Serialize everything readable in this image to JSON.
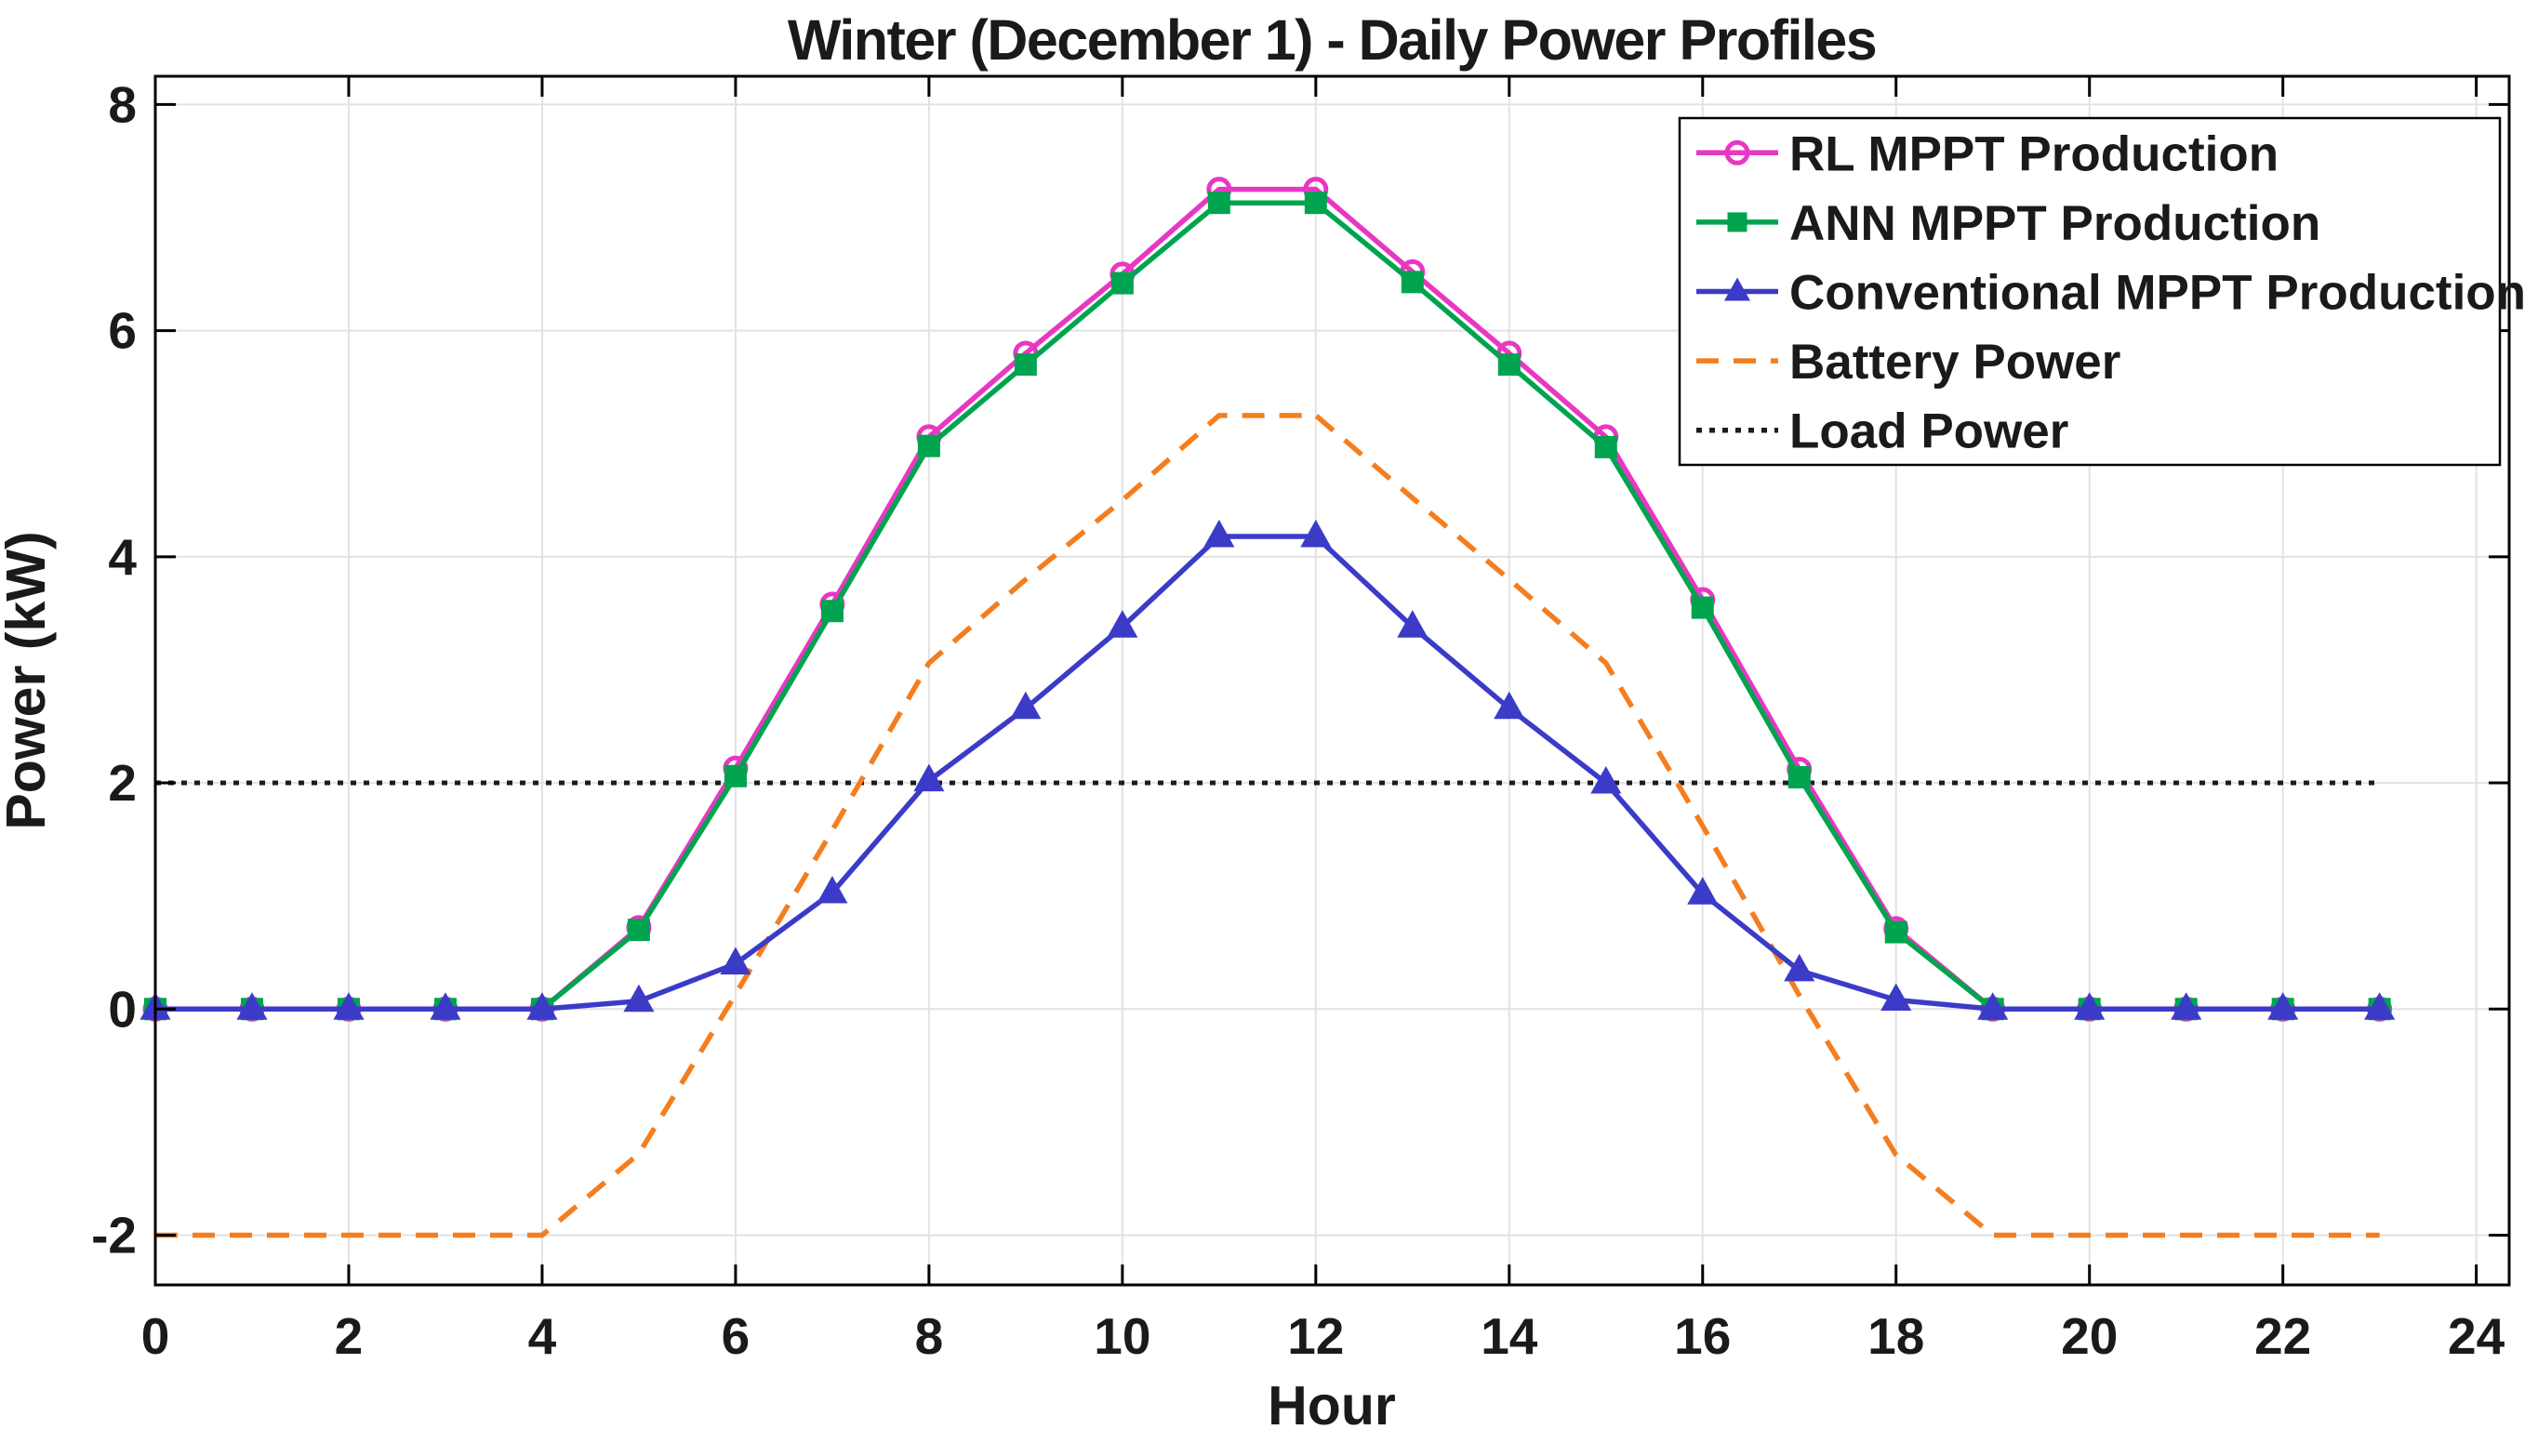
{
  "title": "Winter (December 1) - Daily Power Profiles",
  "x_axis": {
    "label": "Hour",
    "min": 0,
    "max": 24.34,
    "ticks": [
      0,
      2,
      4,
      6,
      8,
      10,
      12,
      14,
      16,
      18,
      20,
      22,
      24
    ]
  },
  "y_axis": {
    "label": "Power (kW)",
    "min": -2.44,
    "max": 8.25,
    "ticks": [
      -2,
      0,
      2,
      4,
      6,
      8
    ]
  },
  "chart_data": {
    "type": "line",
    "title": "Winter (December 1) - Daily Power Profiles",
    "xlabel": "Hour",
    "ylabel": "Power (kW)",
    "x": [
      0,
      1,
      2,
      3,
      4,
      5,
      6,
      7,
      8,
      9,
      10,
      11,
      12,
      13,
      14,
      15,
      16,
      17,
      18,
      19,
      20,
      21,
      22,
      23
    ],
    "xlim": [
      0,
      24.34
    ],
    "ylim": [
      -2.44,
      8.25
    ],
    "grid": true,
    "grid_color": "#e2e2e2",
    "legend_position": "top-right",
    "legend_border_color": "#000000",
    "axes_color": "#000000",
    "draw_order": [
      4,
      3,
      0,
      1,
      2
    ],
    "series": [
      {
        "name": "RL MPPT Production",
        "color": "#e837c3",
        "marker": "circle",
        "line_style": "solid",
        "values": [
          0,
          0,
          0,
          0,
          0,
          0.72,
          2.13,
          3.58,
          5.06,
          5.8,
          6.5,
          7.25,
          7.25,
          6.52,
          5.8,
          5.06,
          3.62,
          2.12,
          0.71,
          0,
          0,
          0,
          0,
          0
        ]
      },
      {
        "name": "ANN MPPT Production",
        "color": "#00a44f",
        "marker": "square",
        "line_style": "solid",
        "values": [
          0,
          0,
          0,
          0,
          0,
          0.7,
          2.06,
          3.52,
          4.98,
          5.7,
          6.42,
          7.13,
          7.13,
          6.43,
          5.7,
          4.97,
          3.55,
          2.05,
          0.68,
          0,
          0,
          0,
          0,
          0
        ]
      },
      {
        "name": "Conventional MPPT Production",
        "color": "#3b3bc8",
        "marker": "triangle",
        "line_style": "solid",
        "values": [
          0,
          0,
          0,
          0,
          0,
          0.07,
          0.4,
          1.03,
          2.02,
          2.66,
          3.38,
          4.18,
          4.18,
          3.38,
          2.66,
          2.0,
          1.02,
          0.34,
          0.08,
          0,
          0,
          0,
          0,
          0
        ]
      },
      {
        "name": "Battery Power",
        "color": "#f47e1f",
        "marker": "none",
        "line_style": "dashed",
        "values": [
          -2,
          -2,
          -2,
          -2,
          -2,
          -1.28,
          0.13,
          1.58,
          3.06,
          3.8,
          4.5,
          5.25,
          5.25,
          4.52,
          3.8,
          3.06,
          1.62,
          0.12,
          -1.29,
          -2,
          -2,
          -2,
          -2,
          -2
        ]
      },
      {
        "name": "Load Power",
        "color": "#1c1c1c",
        "marker": "none",
        "line_style": "dotted",
        "values": [
          2,
          2,
          2,
          2,
          2,
          2,
          2,
          2,
          2,
          2,
          2,
          2,
          2,
          2,
          2,
          2,
          2,
          2,
          2,
          2,
          2,
          2,
          2,
          2
        ]
      }
    ]
  }
}
